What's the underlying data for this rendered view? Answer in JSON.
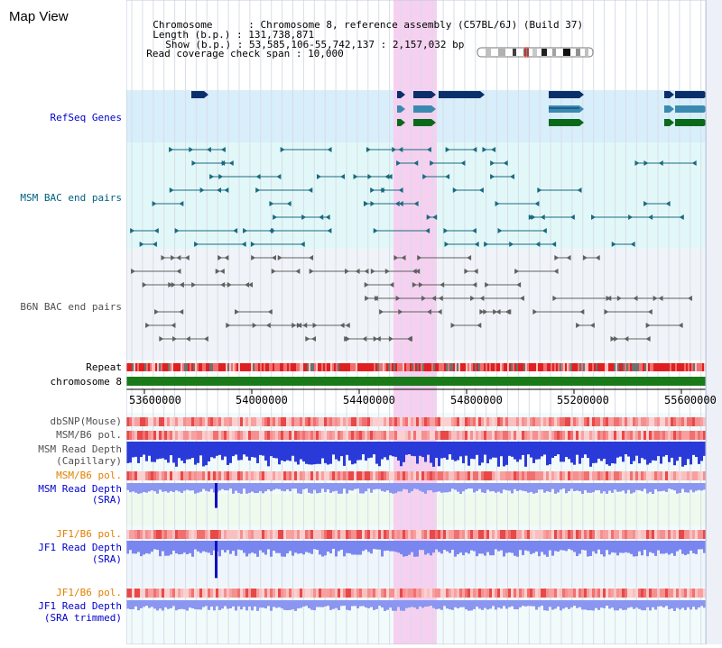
{
  "title": "Map View",
  "info": {
    "chromosome_label": "Chromosome      :",
    "chromosome_value": "Chromosome 8, reference assembly (C57BL/6J) (Build 37)",
    "length_label": "Length (b.p.) :",
    "length_value": "131,738,871",
    "show_label": "Show (b.p.) :",
    "show_value": "53,585,106-55,742,137 : 2,157,032 bp",
    "coverage_label": "Read coverage check span :",
    "coverage_value": "10,000"
  },
  "tracks": {
    "refseq": "RefSeq Genes",
    "msm_bac": "MSM BAC end pairs",
    "b6n_bac": "B6N BAC end pairs",
    "repeat": "Repeat",
    "chromosome": "chromosome 8",
    "dbsnp": "dbSNP(Mouse)",
    "msm_b6_pol1": "MSM/B6 pol.",
    "msm_read_depth_cap_1": "MSM Read Depth",
    "msm_read_depth_cap_2": "(Capillary)",
    "msm_b6_pol2": "MSM/B6 pol.",
    "msm_read_depth_sra_1": "MSM Read Depth",
    "msm_read_depth_sra_2": "(SRA)",
    "jf1_b6_pol1": "JF1/B6 pol.",
    "jf1_read_depth_sra_1": "JF1 Read Depth",
    "jf1_read_depth_sra_2": "(SRA)",
    "jf1_b6_pol2": "JF1/B6 pol.",
    "jf1_read_depth_trim_1": "JF1 Read Depth",
    "jf1_read_depth_trim_2": "(SRA trimmed)"
  },
  "axis_ticks": [
    "53600000",
    "54000000",
    "54400000",
    "54800000",
    "55200000",
    "55600000"
  ],
  "colors": {
    "blue_label": "#0000cc",
    "teal_label": "#006080",
    "gray_label": "#505050",
    "orange_label": "#e08000",
    "highlight": "#f6d0f0",
    "refseq_bg": "#d8eefa",
    "msm_bg": "#e2f8f8",
    "b6n_bg": "#f0f4f8"
  }
}
